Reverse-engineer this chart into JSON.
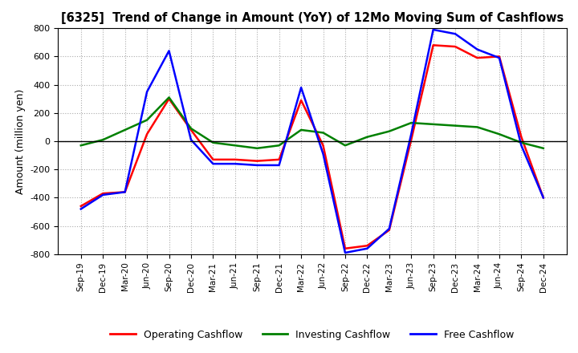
{
  "title": "[6325]  Trend of Change in Amount (YoY) of 12Mo Moving Sum of Cashflows",
  "ylabel": "Amount (million yen)",
  "ylim": [
    -800,
    800
  ],
  "yticks": [
    -800,
    -600,
    -400,
    -200,
    0,
    200,
    400,
    600,
    800
  ],
  "x_labels": [
    "Sep-19",
    "Dec-19",
    "Mar-20",
    "Jun-20",
    "Sep-20",
    "Dec-20",
    "Mar-21",
    "Jun-21",
    "Sep-21",
    "Dec-21",
    "Mar-22",
    "Jun-22",
    "Sep-22",
    "Dec-22",
    "Mar-23",
    "Jun-23",
    "Sep-23",
    "Dec-23",
    "Mar-24",
    "Jun-24",
    "Sep-24",
    "Dec-24"
  ],
  "operating": [
    -460,
    -370,
    -360,
    50,
    300,
    80,
    -130,
    -130,
    -140,
    -130,
    290,
    -30,
    -760,
    -740,
    -630,
    10,
    680,
    670,
    590,
    600,
    30,
    -400
  ],
  "investing": [
    -30,
    10,
    80,
    150,
    310,
    90,
    -10,
    -30,
    -50,
    -30,
    80,
    60,
    -30,
    30,
    70,
    130,
    120,
    110,
    100,
    50,
    -10,
    -50
  ],
  "free": [
    -480,
    -380,
    -360,
    350,
    640,
    10,
    -160,
    -160,
    -170,
    -170,
    380,
    -90,
    -790,
    -760,
    -620,
    50,
    790,
    760,
    650,
    590,
    -30,
    -400
  ],
  "line_colors": {
    "operating": "#FF0000",
    "investing": "#008000",
    "free": "#0000FF"
  },
  "legend_labels": [
    "Operating Cashflow",
    "Investing Cashflow",
    "Free Cashflow"
  ],
  "background_color": "#FFFFFF",
  "grid_color": "#AAAAAA"
}
